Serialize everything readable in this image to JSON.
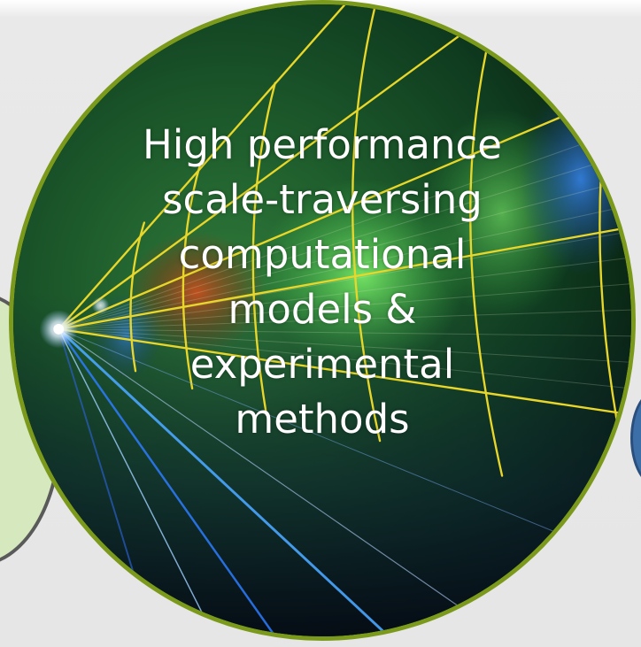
{
  "caption": {
    "lines": [
      "High performance",
      "scale-traversing",
      "computational",
      "models &",
      "experimental",
      "methods"
    ]
  },
  "colors": {
    "ring_border": "#7b9a1c",
    "grid_lines": "#e8d62a",
    "background": "#e6e6e6",
    "left_node_fill": "#d6e8bd",
    "right_node_fill": "#3c6ea8"
  }
}
